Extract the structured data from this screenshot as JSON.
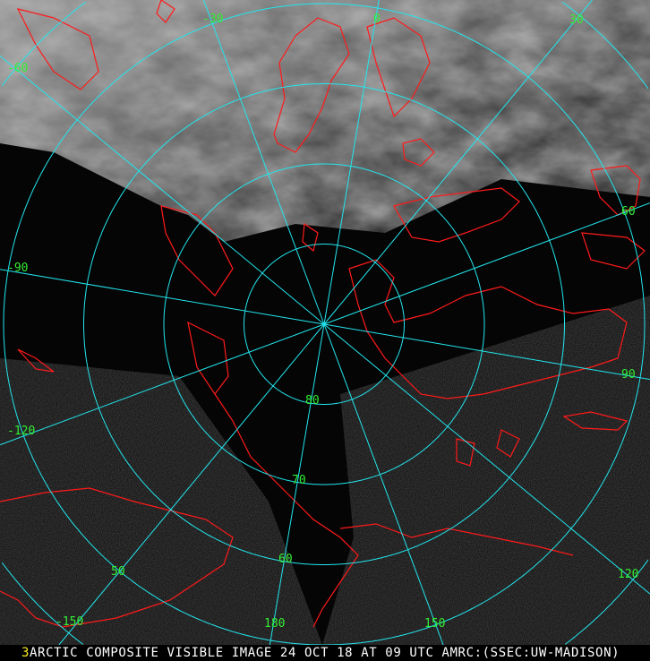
{
  "image": {
    "caption": "ARCTIC COMPOSITE VISIBLE IMAGE 24 OCT 18 AT 09 UTC AMRC:(SSEC:UW-MADISON)",
    "frame_number": "3"
  },
  "grid": {
    "latitudes": [
      80,
      70,
      60,
      50,
      40
    ],
    "latitude_labels": [
      "80",
      "70",
      "60",
      "50"
    ],
    "longitudes": [
      -150,
      -120,
      -90,
      -60,
      -30,
      0,
      30,
      60,
      90,
      120,
      150,
      180
    ],
    "longitude_labels": [
      "-150",
      "-120",
      "-90",
      "-60",
      "-30",
      "0",
      "30",
      "60",
      "90",
      "120",
      "150",
      "180"
    ]
  },
  "colors": {
    "grid": "#22e6ee",
    "labels": "#33ee33",
    "coastlines": "#ff1a1a",
    "caption": "#ffffff",
    "frame_number": "#ffee22"
  }
}
